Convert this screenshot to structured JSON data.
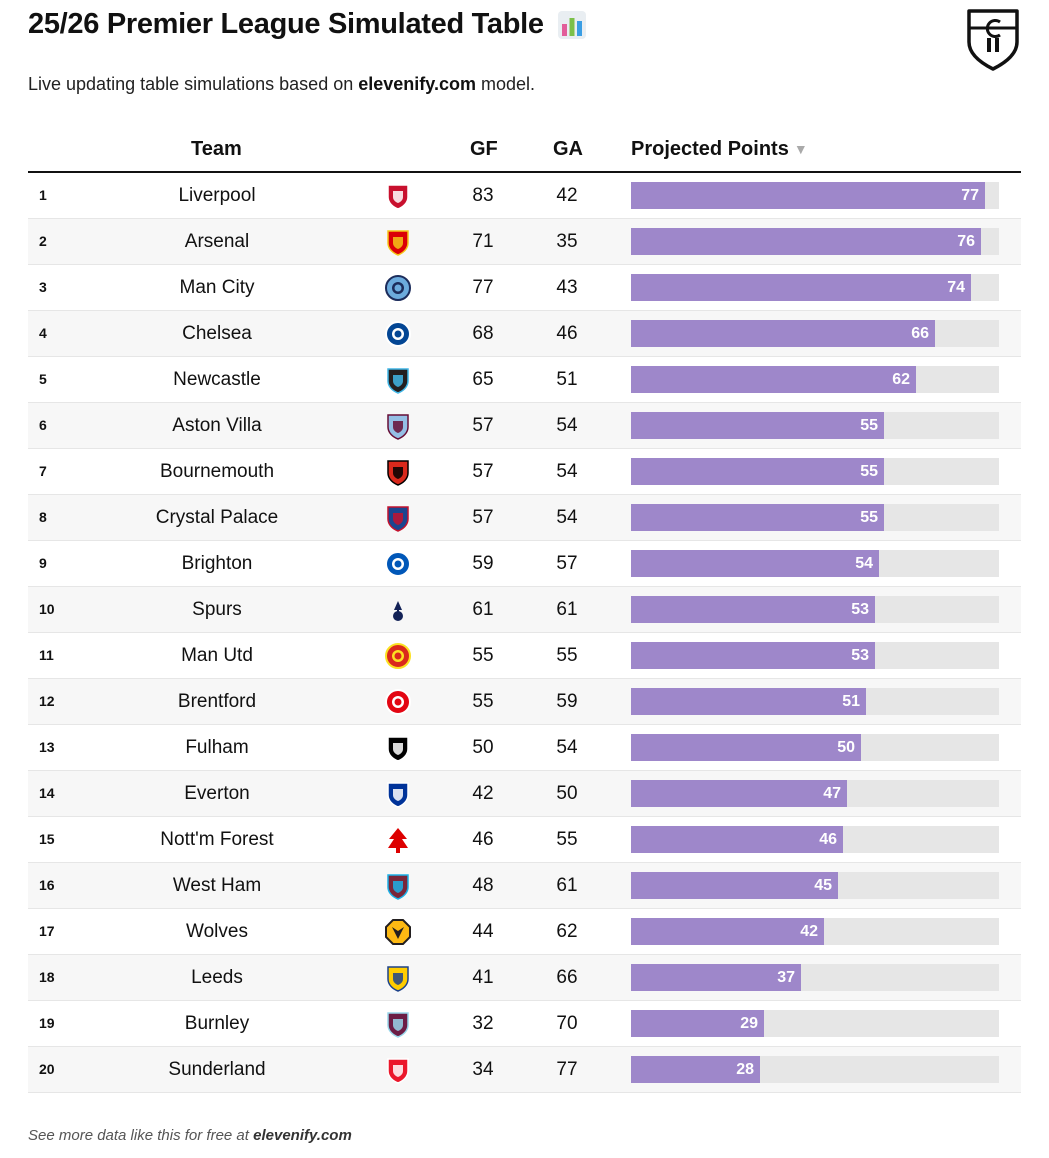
{
  "header": {
    "title": "25/26 Premier League Simulated Table",
    "subtitle_prefix": "Live updating table simulations based on ",
    "subtitle_brand": "elevenify.com",
    "subtitle_suffix": " model."
  },
  "columns": {
    "team": "Team",
    "gf": "GF",
    "ga": "GA",
    "points": "Projected Points",
    "sort_indicator": "▼"
  },
  "footer": {
    "prefix": "See more data like this for free at ",
    "brand": "elevenify.com"
  },
  "colors": {
    "bar": "#9e87ca",
    "track": "#e6e6e6"
  },
  "chart_data": {
    "type": "bar",
    "title": "25/26 Premier League Simulated Table",
    "xlabel": "Projected Points",
    "xlim": [
      0,
      80
    ],
    "rows": [
      {
        "rank": "1",
        "team": "Liverpool",
        "gf": "83",
        "ga": "42",
        "points": 77,
        "crest": {
          "primary": "#c8102e",
          "secondary": "#ffffff",
          "shape": "shield"
        }
      },
      {
        "rank": "2",
        "team": "Arsenal",
        "gf": "71",
        "ga": "35",
        "points": 76,
        "crest": {
          "primary": "#db0007",
          "secondary": "#f5c518",
          "shape": "shield"
        }
      },
      {
        "rank": "3",
        "team": "Man City",
        "gf": "77",
        "ga": "43",
        "points": 74,
        "crest": {
          "primary": "#6cabdd",
          "secondary": "#1c2c5b",
          "shape": "circle"
        }
      },
      {
        "rank": "4",
        "team": "Chelsea",
        "gf": "68",
        "ga": "46",
        "points": 66,
        "crest": {
          "primary": "#034694",
          "secondary": "#ffffff",
          "shape": "circle"
        }
      },
      {
        "rank": "5",
        "team": "Newcastle",
        "gf": "65",
        "ga": "51",
        "points": 62,
        "crest": {
          "primary": "#241f20",
          "secondary": "#41b6e6",
          "shape": "shield"
        }
      },
      {
        "rank": "6",
        "team": "Aston Villa",
        "gf": "57",
        "ga": "54",
        "points": 55,
        "crest": {
          "primary": "#95bfe5",
          "secondary": "#670e36",
          "shape": "shield"
        }
      },
      {
        "rank": "7",
        "team": "Bournemouth",
        "gf": "57",
        "ga": "54",
        "points": 55,
        "crest": {
          "primary": "#da291c",
          "secondary": "#000000",
          "shape": "shield"
        }
      },
      {
        "rank": "8",
        "team": "Crystal Palace",
        "gf": "57",
        "ga": "54",
        "points": 55,
        "crest": {
          "primary": "#1b458f",
          "secondary": "#c4122e",
          "shape": "shield"
        }
      },
      {
        "rank": "9",
        "team": "Brighton",
        "gf": "59",
        "ga": "57",
        "points": 54,
        "crest": {
          "primary": "#0057b8",
          "secondary": "#ffffff",
          "shape": "circle"
        }
      },
      {
        "rank": "10",
        "team": "Spurs",
        "gf": "61",
        "ga": "61",
        "points": 53,
        "crest": {
          "primary": "#132257",
          "secondary": "#ffffff",
          "shape": "bird"
        }
      },
      {
        "rank": "11",
        "team": "Man Utd",
        "gf": "55",
        "ga": "55",
        "points": 53,
        "crest": {
          "primary": "#da291c",
          "secondary": "#fbe122",
          "shape": "circle"
        }
      },
      {
        "rank": "12",
        "team": "Brentford",
        "gf": "55",
        "ga": "59",
        "points": 51,
        "crest": {
          "primary": "#e30613",
          "secondary": "#ffffff",
          "shape": "circle"
        }
      },
      {
        "rank": "13",
        "team": "Fulham",
        "gf": "50",
        "ga": "54",
        "points": 50,
        "crest": {
          "primary": "#000000",
          "secondary": "#ffffff",
          "shape": "shield"
        }
      },
      {
        "rank": "14",
        "team": "Everton",
        "gf": "42",
        "ga": "50",
        "points": 47,
        "crest": {
          "primary": "#003399",
          "secondary": "#ffffff",
          "shape": "shield"
        }
      },
      {
        "rank": "15",
        "team": "Nott'm Forest",
        "gf": "46",
        "ga": "55",
        "points": 46,
        "crest": {
          "primary": "#dd0000",
          "secondary": "#ffffff",
          "shape": "tree"
        }
      },
      {
        "rank": "16",
        "team": "West Ham",
        "gf": "48",
        "ga": "61",
        "points": 45,
        "crest": {
          "primary": "#7a263a",
          "secondary": "#1bb1e7",
          "shape": "shield"
        }
      },
      {
        "rank": "17",
        "team": "Wolves",
        "gf": "44",
        "ga": "62",
        "points": 42,
        "crest": {
          "primary": "#fdb913",
          "secondary": "#231f20",
          "shape": "octagon"
        }
      },
      {
        "rank": "18",
        "team": "Leeds",
        "gf": "41",
        "ga": "66",
        "points": 37,
        "crest": {
          "primary": "#ffcd00",
          "secondary": "#1d428a",
          "shape": "shield"
        }
      },
      {
        "rank": "19",
        "team": "Burnley",
        "gf": "32",
        "ga": "70",
        "points": 29,
        "crest": {
          "primary": "#6c1d45",
          "secondary": "#99d6ea",
          "shape": "shield"
        }
      },
      {
        "rank": "20",
        "team": "Sunderland",
        "gf": "34",
        "ga": "77",
        "points": 28,
        "crest": {
          "primary": "#eb172b",
          "secondary": "#ffffff",
          "shape": "shield"
        }
      }
    ]
  }
}
